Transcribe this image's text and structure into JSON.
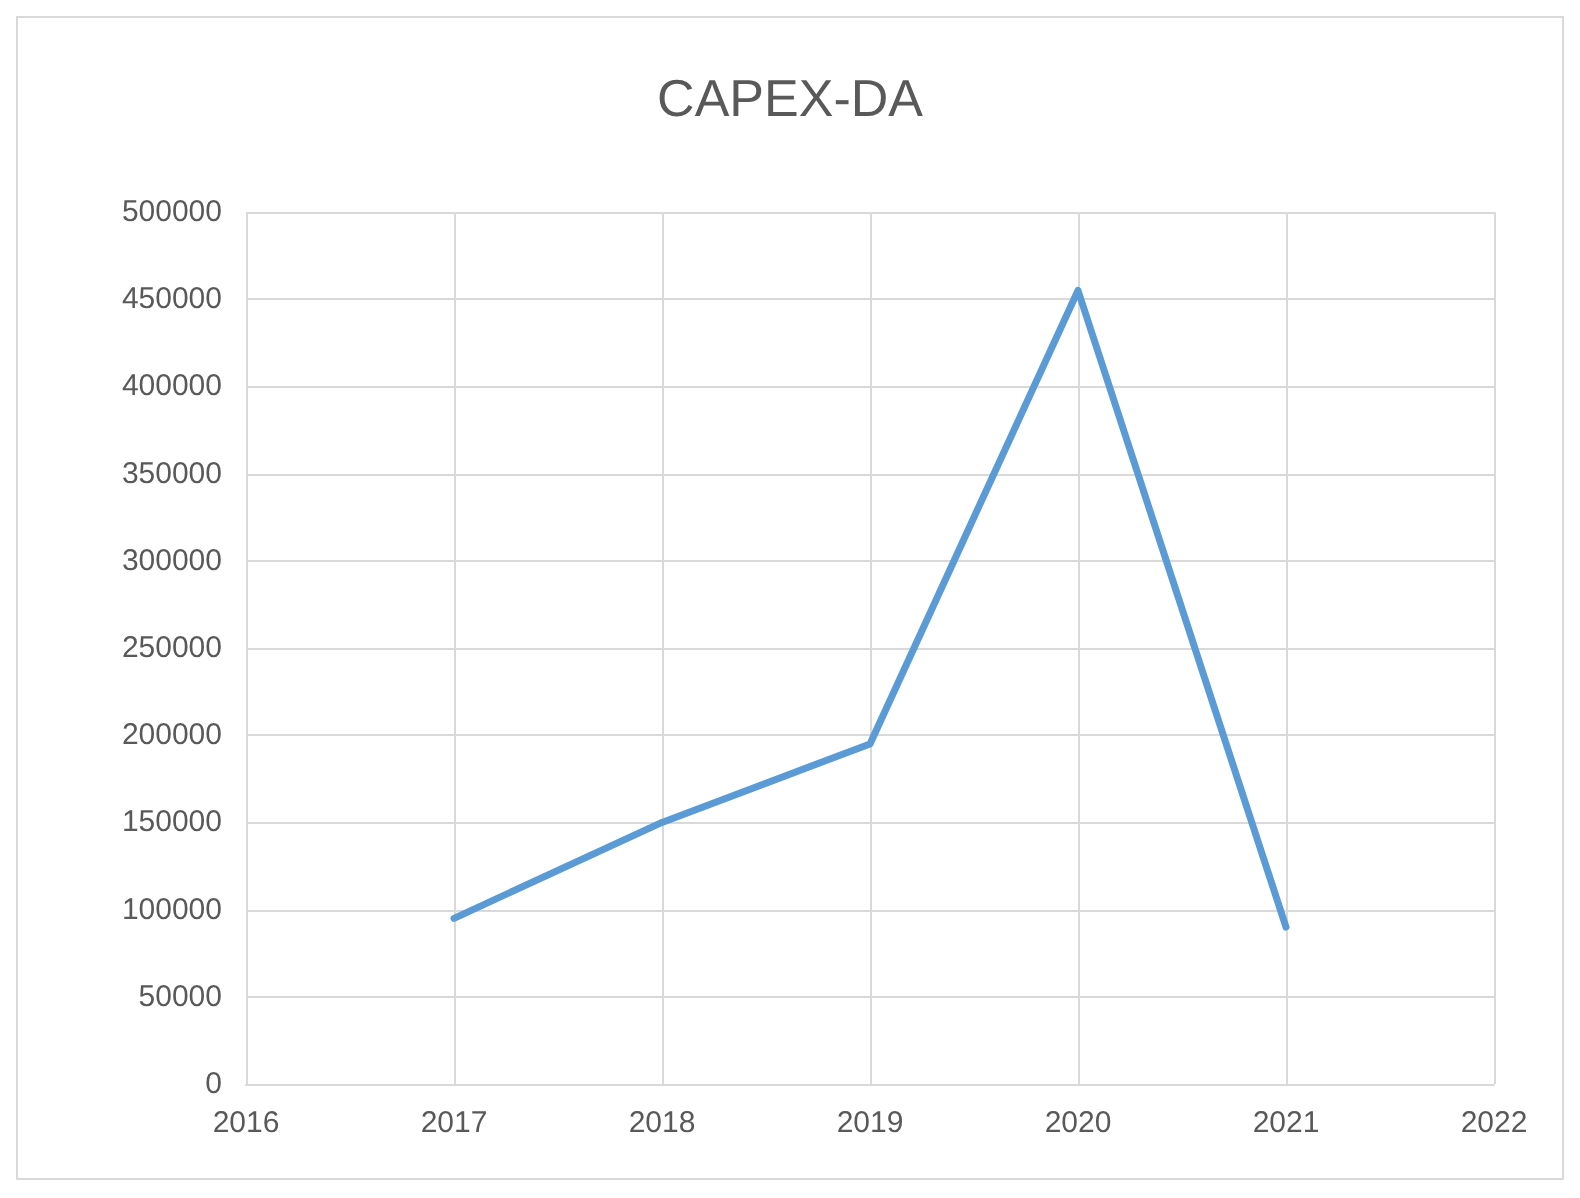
{
  "chart_data": {
    "type": "line",
    "title": "CAPEX-DA",
    "x": [
      2017,
      2018,
      2019,
      2020,
      2021
    ],
    "series": [
      {
        "color": "#5b9bd5",
        "values": [
          95000,
          150000,
          195000,
          455000,
          90000
        ]
      }
    ],
    "xlim": [
      2016,
      2022
    ],
    "xticks": [
      2016,
      2017,
      2018,
      2019,
      2020,
      2021,
      2022
    ],
    "ylim": [
      0,
      500000
    ],
    "yticks": [
      0,
      50000,
      100000,
      150000,
      200000,
      250000,
      300000,
      350000,
      400000,
      450000,
      500000
    ],
    "grid": true,
    "marker": "none",
    "line_style": "solid"
  }
}
